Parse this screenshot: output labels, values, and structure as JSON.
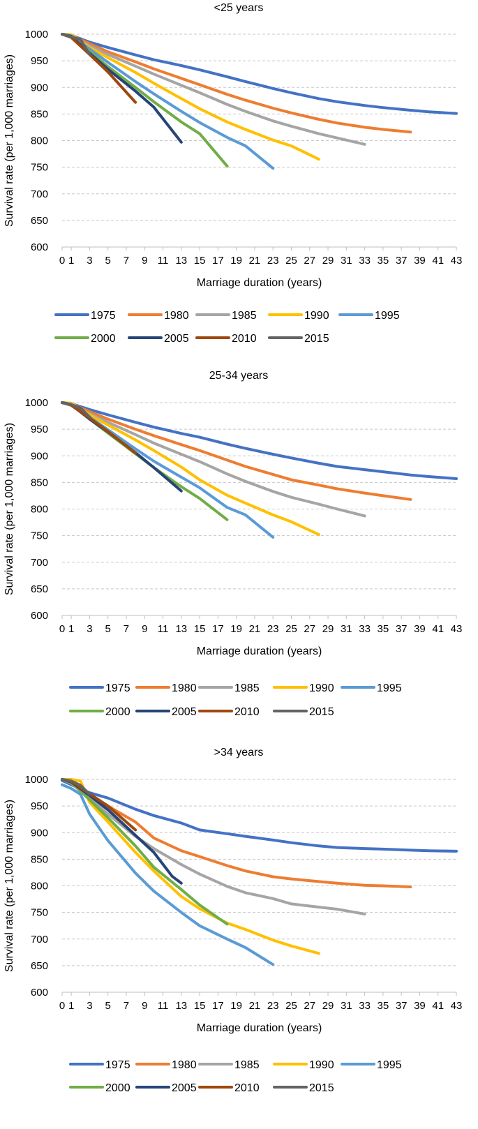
{
  "chart_data": [
    {
      "type": "line",
      "title": "<25 years",
      "xlabel": "Marriage duration (years)",
      "ylabel": "Survival rate (per 1,000 marriages)",
      "ylim": [
        600,
        1000
      ],
      "yticks": [
        600,
        650,
        700,
        750,
        800,
        850,
        900,
        950,
        1000
      ],
      "xticks": [
        0,
        1,
        3,
        5,
        7,
        9,
        11,
        13,
        15,
        17,
        19,
        21,
        23,
        25,
        27,
        29,
        31,
        33,
        35,
        37,
        39,
        41,
        43
      ],
      "grid": "horizontal",
      "legend": "bottom",
      "series": [
        {
          "name": "1975",
          "color": "#4472C4",
          "x": [
            0,
            1,
            3,
            5,
            8,
            10,
            13,
            15,
            18,
            20,
            23,
            25,
            28,
            30,
            33,
            35,
            38,
            40,
            43
          ],
          "values": [
            1000,
            998,
            985,
            975,
            961,
            952,
            941,
            933,
            920,
            911,
            898,
            890,
            879,
            873,
            866,
            862,
            857,
            854,
            851
          ]
        },
        {
          "name": "1980",
          "color": "#ED7D31",
          "x": [
            0,
            1,
            3,
            5,
            8,
            10,
            13,
            15,
            18,
            20,
            23,
            25,
            28,
            30,
            33,
            35,
            38
          ],
          "values": [
            1000,
            998,
            982,
            967,
            948,
            935,
            917,
            905,
            887,
            876,
            861,
            852,
            840,
            833,
            825,
            821,
            816
          ]
        },
        {
          "name": "1985",
          "color": "#A5A5A5",
          "x": [
            0,
            1,
            3,
            5,
            8,
            10,
            13,
            15,
            18,
            20,
            23,
            25,
            28,
            30,
            33
          ],
          "values": [
            1000,
            997,
            978,
            962,
            940,
            925,
            904,
            890,
            868,
            855,
            837,
            827,
            813,
            805,
            793
          ]
        },
        {
          "name": "1990",
          "color": "#FFC000",
          "x": [
            0,
            1,
            3,
            5,
            8,
            10,
            13,
            15,
            18,
            20,
            23,
            25,
            28
          ],
          "values": [
            1000,
            999,
            975,
            956,
            928,
            908,
            879,
            860,
            835,
            821,
            801,
            790,
            765
          ]
        },
        {
          "name": "1995",
          "color": "#5B9BD5",
          "x": [
            0,
            1,
            3,
            5,
            8,
            10,
            13,
            15,
            18,
            20,
            23
          ],
          "values": [
            1000,
            997,
            972,
            947,
            911,
            888,
            855,
            834,
            806,
            790,
            748
          ]
        },
        {
          "name": "2000",
          "color": "#70AD47",
          "x": [
            0,
            1,
            3,
            5,
            8,
            10,
            13,
            15,
            18
          ],
          "values": [
            1000,
            996,
            967,
            939,
            900,
            873,
            835,
            813,
            752
          ]
        },
        {
          "name": "2005",
          "color": "#264478",
          "x": [
            0,
            1,
            3,
            5,
            8,
            10,
            13
          ],
          "values": [
            1000,
            996,
            964,
            934,
            893,
            863,
            797
          ]
        },
        {
          "name": "2010",
          "color": "#9E480E",
          "x": [
            0,
            1,
            3,
            5,
            8
          ],
          "values": [
            1000,
            994,
            962,
            929,
            872
          ]
        },
        {
          "name": "2015",
          "color": "#636363",
          "x": [
            0,
            1,
            2,
            3
          ],
          "values": [
            1000,
            995,
            990,
            962
          ]
        }
      ]
    },
    {
      "type": "line",
      "title": "25-34 years",
      "xlabel": "Marriage duration (years)",
      "ylabel": "Survival rate (per 1,000 marriages)",
      "ylim": [
        600,
        1000
      ],
      "yticks": [
        600,
        650,
        700,
        750,
        800,
        850,
        900,
        950,
        1000
      ],
      "xticks": [
        0,
        1,
        3,
        5,
        7,
        9,
        11,
        13,
        15,
        17,
        19,
        21,
        23,
        25,
        27,
        29,
        31,
        33,
        35,
        37,
        39,
        41,
        43
      ],
      "grid": "horizontal",
      "legend": "bottom",
      "series": [
        {
          "name": "1975",
          "color": "#4472C4",
          "x": [
            0,
            1,
            3,
            5,
            8,
            10,
            13,
            15,
            18,
            20,
            23,
            25,
            28,
            30,
            33,
            35,
            38,
            40,
            43
          ],
          "values": [
            1000,
            998,
            987,
            977,
            963,
            954,
            942,
            935,
            922,
            914,
            903,
            896,
            886,
            880,
            874,
            870,
            864,
            861,
            857
          ]
        },
        {
          "name": "1980",
          "color": "#ED7D31",
          "x": [
            0,
            1,
            3,
            5,
            8,
            10,
            13,
            15,
            18,
            20,
            23,
            25,
            28,
            30,
            33,
            35,
            38
          ],
          "values": [
            1000,
            998,
            983,
            969,
            950,
            938,
            921,
            910,
            892,
            880,
            865,
            855,
            845,
            838,
            830,
            825,
            818
          ]
        },
        {
          "name": "1985",
          "color": "#A5A5A5",
          "x": [
            0,
            1,
            3,
            5,
            8,
            10,
            13,
            15,
            18,
            20,
            23,
            25,
            28,
            30,
            33
          ],
          "values": [
            1000,
            997,
            979,
            963,
            940,
            924,
            903,
            889,
            866,
            852,
            833,
            822,
            809,
            800,
            787
          ]
        },
        {
          "name": "1990",
          "color": "#FFC000",
          "x": [
            0,
            1,
            3,
            5,
            8,
            10,
            13,
            15,
            18,
            20,
            23,
            25,
            28
          ],
          "values": [
            1000,
            999,
            977,
            958,
            930,
            910,
            879,
            855,
            826,
            811,
            789,
            776,
            752
          ]
        },
        {
          "name": "1995",
          "color": "#5B9BD5",
          "x": [
            0,
            1,
            3,
            5,
            8,
            10,
            13,
            15,
            18,
            20,
            23
          ],
          "values": [
            1000,
            997,
            973,
            949,
            913,
            890,
            860,
            840,
            803,
            789,
            747
          ]
        },
        {
          "name": "2000",
          "color": "#70AD47",
          "x": [
            0,
            1,
            3,
            5,
            8,
            10,
            13,
            15,
            18
          ],
          "values": [
            1000,
            996,
            969,
            943,
            904,
            878,
            842,
            820,
            780
          ]
        },
        {
          "name": "2005",
          "color": "#264478",
          "x": [
            0,
            1,
            3,
            5,
            8,
            10,
            13
          ],
          "values": [
            1000,
            996,
            969,
            945,
            906,
            878,
            834
          ]
        },
        {
          "name": "2010",
          "color": "#9E480E",
          "x": [
            0,
            1,
            3,
            5,
            8
          ],
          "values": [
            1000,
            995,
            971,
            946,
            905
          ]
        },
        {
          "name": "2015",
          "color": "#636363",
          "x": [
            0,
            1,
            2,
            3
          ],
          "values": [
            1000,
            996,
            990,
            973
          ]
        }
      ]
    },
    {
      "type": "line",
      "title": ">34 years",
      "xlabel": "Marriage duration (years)",
      "ylabel": "Survival rate (per 1,000 marriages)",
      "ylim": [
        600,
        1000
      ],
      "yticks": [
        600,
        650,
        700,
        750,
        800,
        850,
        900,
        950,
        1000
      ],
      "xticks": [
        0,
        1,
        3,
        5,
        7,
        9,
        11,
        13,
        15,
        17,
        19,
        21,
        23,
        25,
        27,
        29,
        31,
        33,
        35,
        37,
        39,
        41,
        43
      ],
      "grid": "horizontal",
      "legend": "bottom",
      "series": [
        {
          "name": "1975",
          "color": "#4472C4",
          "x": [
            0,
            1,
            3,
            5,
            8,
            10,
            13,
            15,
            18,
            20,
            23,
            25,
            28,
            30,
            33,
            35,
            38,
            40,
            43
          ],
          "values": [
            998,
            990,
            975,
            965,
            944,
            932,
            918,
            905,
            898,
            893,
            886,
            881,
            875,
            872,
            870,
            869,
            867,
            866,
            865
          ]
        },
        {
          "name": "1980",
          "color": "#ED7D31",
          "x": [
            0,
            1,
            3,
            5,
            8,
            10,
            13,
            15,
            18,
            20,
            23,
            25,
            28,
            30,
            33,
            35,
            38
          ],
          "values": [
            1000,
            995,
            970,
            950,
            920,
            890,
            866,
            855,
            838,
            828,
            817,
            813,
            808,
            805,
            801,
            800,
            798
          ]
        },
        {
          "name": "1985",
          "color": "#A5A5A5",
          "x": [
            0,
            1,
            3,
            5,
            8,
            10,
            13,
            15,
            18,
            20,
            23,
            25,
            28,
            30,
            33
          ],
          "values": [
            1000,
            993,
            965,
            935,
            893,
            870,
            840,
            822,
            799,
            787,
            776,
            766,
            760,
            756,
            747
          ]
        },
        {
          "name": "1990",
          "color": "#FFC000",
          "x": [
            0,
            1,
            2,
            3,
            5,
            8,
            10,
            13,
            15,
            18,
            20,
            23,
            25,
            28
          ],
          "values": [
            1000,
            1000,
            997,
            957,
            920,
            863,
            828,
            780,
            757,
            730,
            718,
            698,
            687,
            673
          ]
        },
        {
          "name": "1995",
          "color": "#5B9BD5",
          "x": [
            0,
            1,
            2,
            3,
            5,
            8,
            10,
            13,
            15,
            18,
            20,
            23
          ],
          "values": [
            990,
            983,
            972,
            935,
            885,
            824,
            790,
            750,
            725,
            700,
            684,
            652
          ]
        },
        {
          "name": "2000",
          "color": "#70AD47",
          "x": [
            0,
            1,
            3,
            5,
            8,
            10,
            13,
            15,
            18
          ],
          "values": [
            1000,
            994,
            962,
            928,
            875,
            835,
            793,
            764,
            728
          ]
        },
        {
          "name": "2005",
          "color": "#264478",
          "x": [
            0,
            1,
            3,
            5,
            8,
            10,
            12,
            13
          ],
          "values": [
            1000,
            995,
            970,
            943,
            895,
            863,
            818,
            805
          ]
        },
        {
          "name": "2010",
          "color": "#9E480E",
          "x": [
            0,
            1,
            3,
            5,
            8
          ],
          "values": [
            1000,
            996,
            973,
            950,
            905
          ]
        },
        {
          "name": "2015",
          "color": "#636363",
          "x": [
            0,
            1,
            2,
            3
          ],
          "values": [
            1000,
            997,
            989,
            972
          ]
        }
      ]
    }
  ]
}
